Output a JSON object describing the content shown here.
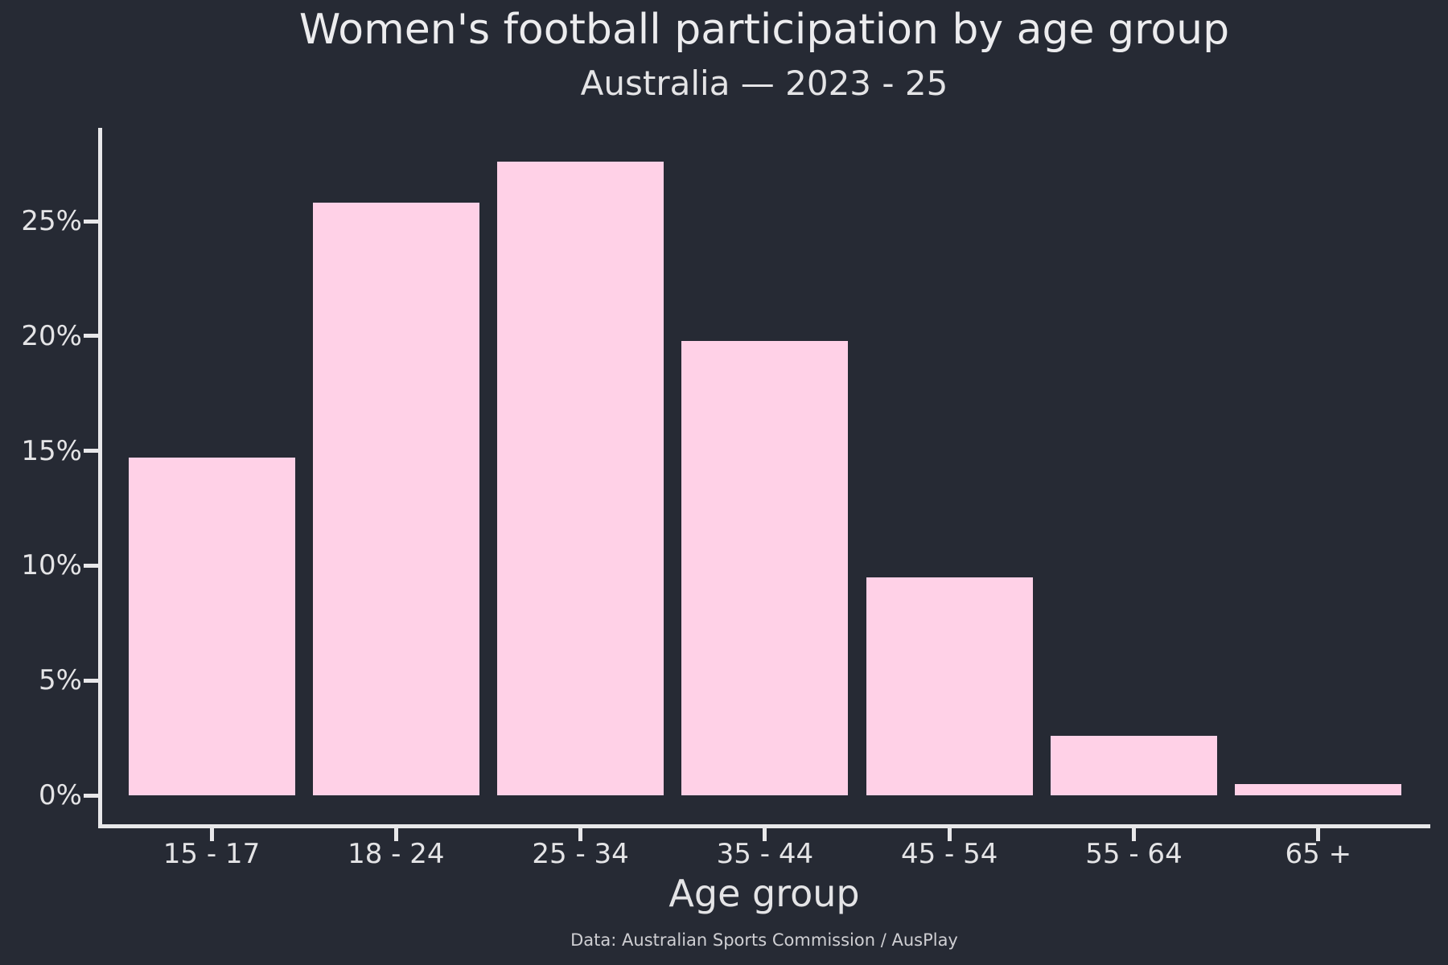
{
  "chart_data": {
    "type": "bar",
    "title": "Women's football participation by age group",
    "subtitle": "Australia — 2023 - 25",
    "xlabel": "Age group",
    "ylabel": "",
    "categories": [
      "15 - 17",
      "18 - 24",
      "25 - 34",
      "35 - 44",
      "45 - 54",
      "55 - 64",
      "65 +"
    ],
    "values": [
      14.7,
      25.8,
      27.6,
      19.8,
      9.5,
      2.6,
      0.5
    ],
    "unit": "%",
    "yticks": [
      0,
      5,
      10,
      15,
      20,
      25
    ],
    "ytick_labels": [
      "0%",
      "5%",
      "10%",
      "15%",
      "20%",
      "25%"
    ],
    "ylim": [
      -1.3,
      29.1
    ],
    "grid": false,
    "legend": "none",
    "source_note": "Data: Australian Sports Commission / AusPlay",
    "colors": {
      "background": "#262A34",
      "bar": "#FFD1E7",
      "axis": "#E8E8EA",
      "title_text": "#ECECEE",
      "text": "#E4E4E6",
      "muted_text": "#CFCFD3"
    }
  }
}
